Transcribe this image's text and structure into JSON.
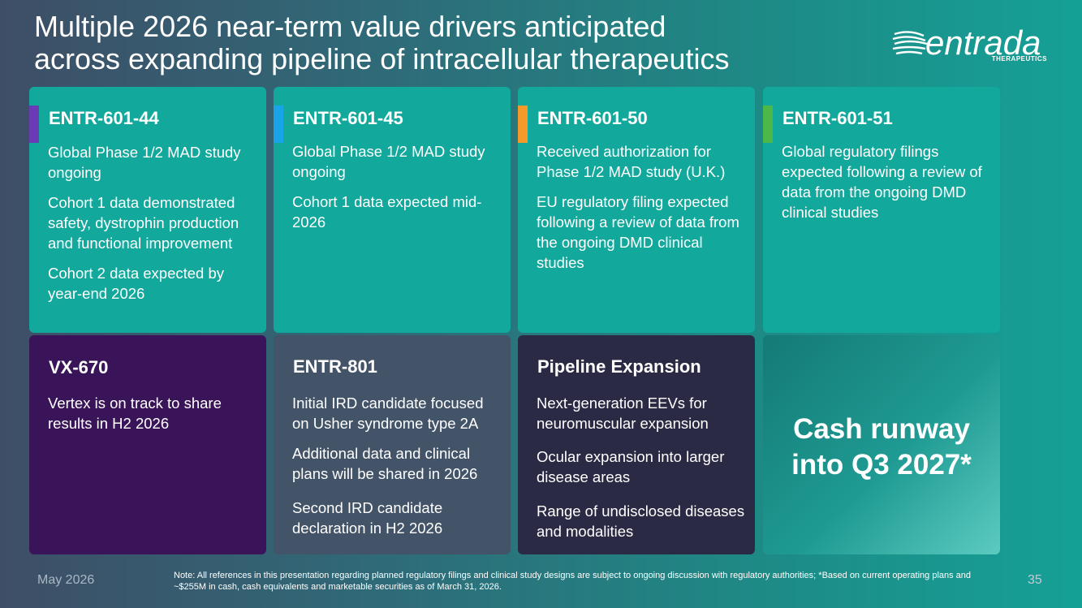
{
  "slide": {
    "title_line1": "Multiple 2026 near-term value drivers anticipated",
    "title_line2": "across expanding pipeline of intracellular therapeutics"
  },
  "logo": {
    "name": "entrada",
    "subtitle": "THERAPEUTICS"
  },
  "colors": {
    "teal_card": "#12a89c",
    "purple_card": "#3a1458",
    "slate_card": "#435469",
    "navy_card": "#2b2a45",
    "accent_purple": "#6a3bb5",
    "accent_blue": "#19a4e8",
    "accent_orange": "#f39a2b",
    "accent_green": "#4cb848"
  },
  "cards": [
    {
      "title": "ENTR-601-44",
      "accent": "#6a3bb5",
      "bullets": [
        "Global Phase 1/2 MAD study ongoing",
        "Cohort 1 data demonstrated safety, dystrophin production and functional improvement",
        "Cohort 2 data expected by year-end 2026"
      ]
    },
    {
      "title": "ENTR-601-45",
      "accent": "#19a4e8",
      "bullets": [
        "Global Phase 1/2 MAD study ongoing",
        "Cohort 1 data expected mid-2026"
      ]
    },
    {
      "title": "ENTR-601-50",
      "accent": "#f39a2b",
      "bullets": [
        "Received authorization for Phase 1/2 MAD study (U.K.)",
        "EU regulatory filing expected following a review of data from the ongoing DMD clinical studies"
      ]
    },
    {
      "title": "ENTR-601-51",
      "accent": "#4cb848",
      "bullets": [
        "Global regulatory filings expected following a review of data from the ongoing DMD clinical studies"
      ]
    },
    {
      "title": "VX-670",
      "bullets": [
        "Vertex is on track to share results in H2 2026"
      ]
    },
    {
      "title": "ENTR-801",
      "bullets": [
        "Initial IRD candidate focused on Usher syndrome type 2A",
        "Additional data and clinical plans will be shared in 2026",
        "Second IRD candidate declaration in H2 2026"
      ]
    },
    {
      "title": "Pipeline Expansion",
      "bullets": [
        "Next-generation EEVs for neuromuscular expansion",
        "Ocular expansion into larger disease areas",
        "Range of undisclosed diseases and modalities"
      ]
    }
  ],
  "cash": {
    "line1": "Cash runway",
    "line2": "into Q3 2027*"
  },
  "footer": {
    "date": "May 2026",
    "note": "Note: All references in this presentation regarding planned regulatory filings and clinical study designs are subject to ongoing discussion with regulatory authorities; *Based on current operating plans and ~$255M in cash, cash equivalents and marketable securities as of March 31, 2026.",
    "page": "35"
  }
}
